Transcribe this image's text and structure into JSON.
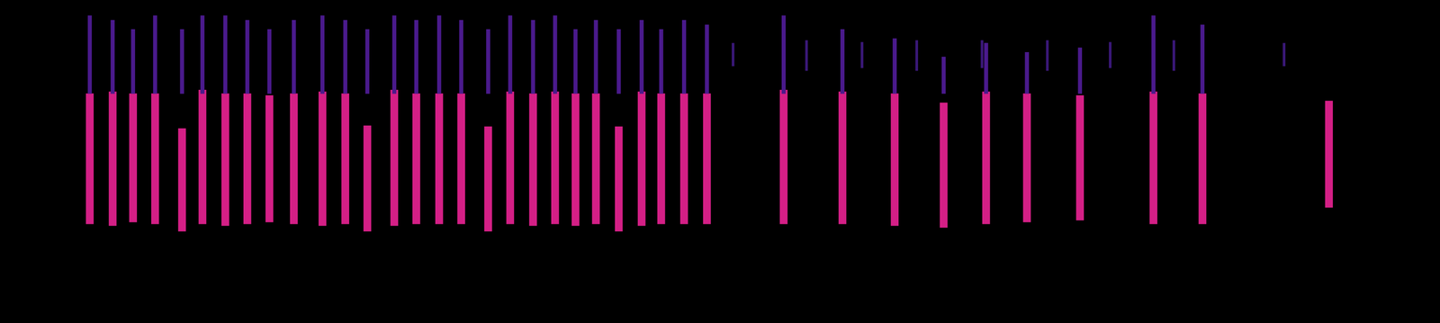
{
  "chart_data": {
    "type": "bar",
    "xlim": [
      0,
      1568
    ],
    "ylim": [
      0,
      352
    ],
    "grid": false,
    "tick_labels": false,
    "series": [
      {
        "color": "#4a1a8c",
        "x": [
          12,
          40,
          65,
          92,
          125,
          150,
          178,
          205,
          232,
          262,
          297,
          325,
          352,
          385,
          412,
          440,
          467,
          500,
          527,
          555,
          582,
          607,
          632,
          660,
          688,
          712,
          740,
          768,
          862,
          934,
          998,
          1058,
          1110,
          1160,
          1225,
          1315,
          1375
        ],
        "values": [
          [
            250,
            335
          ],
          [
            250,
            330
          ],
          [
            250,
            320
          ],
          [
            250,
            335
          ],
          [
            250,
            320
          ],
          [
            250,
            335
          ],
          [
            250,
            335
          ],
          [
            250,
            330
          ],
          [
            250,
            320
          ],
          [
            250,
            330
          ],
          [
            250,
            335
          ],
          [
            250,
            330
          ],
          [
            250,
            320
          ],
          [
            250,
            335
          ],
          [
            250,
            330
          ],
          [
            250,
            335
          ],
          [
            250,
            330
          ],
          [
            250,
            320
          ],
          [
            250,
            335
          ],
          [
            250,
            330
          ],
          [
            250,
            335
          ],
          [
            250,
            320
          ],
          [
            250,
            330
          ],
          [
            250,
            320
          ],
          [
            250,
            330
          ],
          [
            250,
            320
          ],
          [
            250,
            330
          ],
          [
            250,
            325
          ],
          [
            250,
            335
          ],
          [
            250,
            320
          ],
          [
            250,
            310
          ],
          [
            250,
            290
          ],
          [
            250,
            305
          ],
          [
            250,
            295
          ],
          [
            250,
            300
          ],
          [
            250,
            335
          ],
          [
            250,
            325
          ]
        ]
      },
      {
        "color": "#d41f86",
        "x": [
          12,
          40,
          65,
          92,
          125,
          150,
          178,
          205,
          232,
          262,
          297,
          325,
          352,
          385,
          412,
          440,
          467,
          500,
          527,
          555,
          582,
          607,
          632,
          660,
          688,
          712,
          740,
          768,
          862,
          934,
          998,
          1058,
          1110,
          1160,
          1225,
          1315,
          1375,
          1530
        ],
        "values": [
          [
            108,
            250
          ],
          [
            106,
            252
          ],
          [
            110,
            250
          ],
          [
            108,
            250
          ],
          [
            100,
            212
          ],
          [
            108,
            254
          ],
          [
            106,
            250
          ],
          [
            108,
            250
          ],
          [
            110,
            248
          ],
          [
            108,
            250
          ],
          [
            106,
            252
          ],
          [
            108,
            250
          ],
          [
            100,
            215
          ],
          [
            106,
            254
          ],
          [
            108,
            250
          ],
          [
            108,
            250
          ],
          [
            108,
            250
          ],
          [
            100,
            214
          ],
          [
            108,
            252
          ],
          [
            106,
            250
          ],
          [
            108,
            252
          ],
          [
            106,
            250
          ],
          [
            108,
            250
          ],
          [
            100,
            214
          ],
          [
            106,
            252
          ],
          [
            108,
            250
          ],
          [
            108,
            250
          ],
          [
            108,
            250
          ],
          [
            108,
            254
          ],
          [
            108,
            252
          ],
          [
            106,
            250
          ],
          [
            104,
            240
          ],
          [
            108,
            252
          ],
          [
            110,
            250
          ],
          [
            112,
            248
          ],
          [
            108,
            252
          ],
          [
            108,
            250
          ],
          [
            126,
            242
          ]
        ]
      },
      {
        "color": "#3a1878",
        "x": [
          800,
          890,
          958,
          1025,
          1105,
          1185,
          1262,
          1340,
          1475
        ],
        "values": [
          [
            280,
            305
          ],
          [
            275,
            308
          ],
          [
            278,
            306
          ],
          [
            275,
            308
          ],
          [
            278,
            308
          ],
          [
            275,
            308
          ],
          [
            278,
            306
          ],
          [
            275,
            308
          ],
          [
            280,
            305
          ]
        ]
      }
    ]
  }
}
